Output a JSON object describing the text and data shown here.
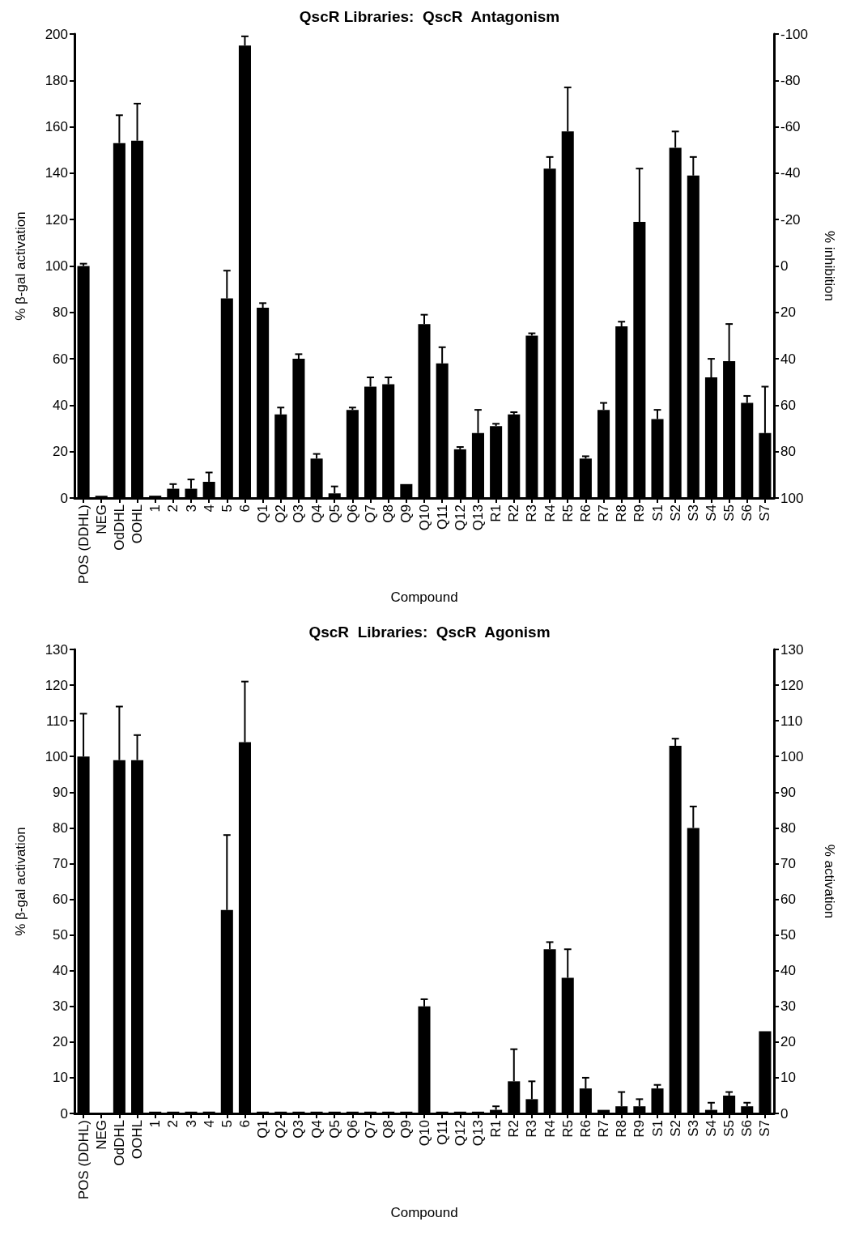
{
  "chart_data": [
    {
      "type": "bar",
      "title": "QscR Libraries:  QscR  Antagonism",
      "xlabel": "Compound",
      "ylabel": "% β-gal activation",
      "y2label": "% inhibition",
      "categories": [
        "POS (DDHL)",
        "NEG",
        "OdDHL",
        "OOHL",
        "1",
        "2",
        "3",
        "4",
        "5",
        "6",
        "Q1",
        "Q2",
        "Q3",
        "Q4",
        "Q5",
        "Q6",
        "Q7",
        "Q8",
        "Q9",
        "Q10",
        "Q11",
        "Q12",
        "Q13",
        "R1",
        "R2",
        "R3",
        "R4",
        "R5",
        "R6",
        "R7",
        "R8",
        "R9",
        "S1",
        "S2",
        "S3",
        "S4",
        "S5",
        "S6",
        "S7"
      ],
      "series": [
        {
          "color": "#000000",
          "values": [
            100,
            1,
            153,
            154,
            1,
            4,
            4,
            7,
            86,
            195,
            82,
            36,
            60,
            17,
            2,
            38,
            48,
            49,
            6,
            75,
            58,
            21,
            28,
            31,
            36,
            70,
            142,
            158,
            17,
            38,
            74,
            119,
            34,
            151,
            139,
            52,
            59,
            41,
            28
          ],
          "errors": [
            [
              100,
              101
            ],
            null,
            [
              153,
              165
            ],
            [
              154,
              170
            ],
            null,
            [
              4,
              6
            ],
            [
              4,
              8
            ],
            [
              7,
              11
            ],
            [
              86,
              98
            ],
            [
              195,
              199
            ],
            [
              82,
              84
            ],
            [
              36,
              39
            ],
            [
              60,
              62
            ],
            [
              17,
              19
            ],
            [
              2,
              5
            ],
            [
              38,
              39
            ],
            [
              48,
              52
            ],
            [
              49,
              52
            ],
            null,
            [
              75,
              79
            ],
            [
              58,
              65
            ],
            [
              21,
              22
            ],
            [
              28,
              38
            ],
            [
              31,
              32
            ],
            [
              36,
              37
            ],
            [
              70,
              71
            ],
            [
              142,
              147
            ],
            [
              158,
              177
            ],
            [
              17,
              18
            ],
            [
              38,
              41
            ],
            [
              74,
              76
            ],
            [
              119,
              142
            ],
            [
              34,
              38
            ],
            [
              151,
              158
            ],
            [
              139,
              147
            ],
            [
              52,
              60
            ],
            [
              59,
              75
            ],
            [
              41,
              44
            ],
            [
              28,
              48
            ]
          ]
        }
      ],
      "ylim": [
        0,
        200
      ],
      "yticks": [
        0,
        20,
        40,
        60,
        80,
        100,
        120,
        140,
        160,
        180,
        200
      ],
      "y2lim": [
        100,
        -100
      ],
      "y2ticks": [
        -100,
        -80,
        -60,
        -40,
        -20,
        0,
        20,
        40,
        60,
        80,
        100
      ],
      "grid": false
    },
    {
      "type": "bar",
      "title": "QscR  Libraries:  QscR  Agonism",
      "xlabel": "Compound",
      "ylabel": "% β-gal activation",
      "y2label": "% activation",
      "categories": [
        "POS (DDHL)",
        "NEG",
        "OdDHL",
        "OOHL",
        "1",
        "2",
        "3",
        "4",
        "5",
        "6",
        "Q1",
        "Q2",
        "Q3",
        "Q4",
        "Q5",
        "Q6",
        "Q7",
        "Q8",
        "Q9",
        "Q10",
        "Q11",
        "Q12",
        "Q13",
        "R1",
        "R2",
        "R3",
        "R4",
        "R5",
        "R6",
        "R7",
        "R8",
        "R9",
        "S1",
        "S2",
        "S3",
        "S4",
        "S5",
        "S6",
        "S7"
      ],
      "series": [
        {
          "color": "#000000",
          "values": [
            100,
            0,
            99,
            99,
            0.5,
            0.5,
            0.5,
            0.5,
            57,
            104,
            0.5,
            0.5,
            0.5,
            0.5,
            0.5,
            0.5,
            0.5,
            0.5,
            0.5,
            30,
            0.5,
            0.5,
            0.5,
            1,
            9,
            4,
            46,
            38,
            7,
            1,
            2,
            2,
            7,
            103,
            80,
            1,
            5,
            2,
            23
          ],
          "errors": [
            [
              100,
              112
            ],
            null,
            [
              99,
              114
            ],
            [
              99,
              106
            ],
            null,
            null,
            null,
            null,
            [
              57,
              78
            ],
            [
              104,
              121
            ],
            null,
            null,
            null,
            null,
            null,
            null,
            null,
            null,
            null,
            [
              30,
              32
            ],
            null,
            null,
            null,
            [
              1,
              2
            ],
            [
              9,
              18
            ],
            [
              4,
              9
            ],
            [
              46,
              48
            ],
            [
              38,
              46
            ],
            [
              7,
              10
            ],
            null,
            [
              2,
              6
            ],
            [
              2,
              4
            ],
            [
              7,
              8
            ],
            [
              103,
              105
            ],
            [
              80,
              86
            ],
            [
              1,
              3
            ],
            [
              5,
              6
            ],
            [
              2,
              3
            ],
            null
          ]
        }
      ],
      "ylim": [
        0,
        130
      ],
      "yticks": [
        0,
        10,
        20,
        30,
        40,
        50,
        60,
        70,
        80,
        90,
        100,
        110,
        120,
        130
      ],
      "y2lim": [
        0,
        130
      ],
      "y2ticks": [
        0,
        10,
        20,
        30,
        40,
        50,
        60,
        70,
        80,
        90,
        100,
        110,
        120,
        130
      ],
      "grid": false
    }
  ]
}
